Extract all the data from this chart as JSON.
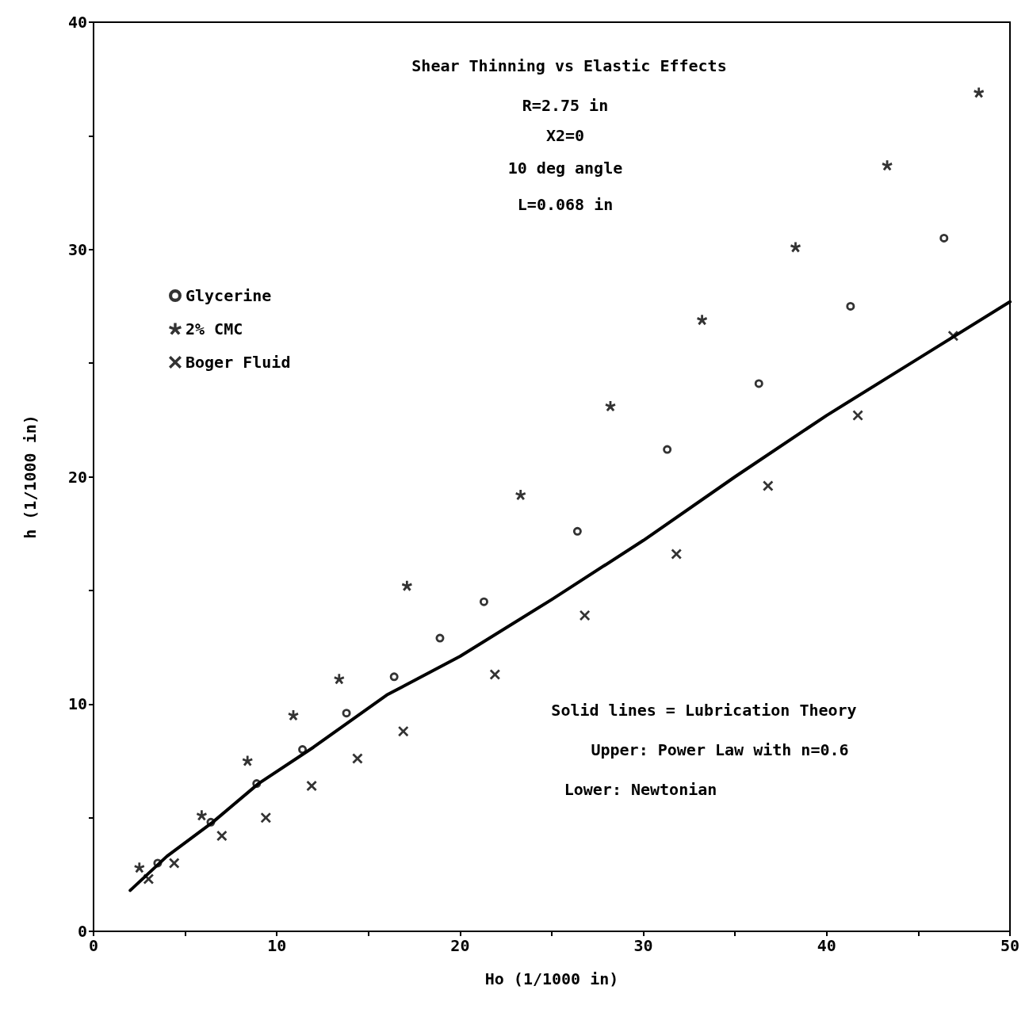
{
  "chart_data": {
    "type": "scatter",
    "title": "Shear Thinning vs Elastic Effects",
    "xlabel": "Ho (1/1000 in)",
    "ylabel": "h (1/1000 in)",
    "xlim": [
      0,
      50
    ],
    "xticks": [
      0,
      {
        "value": 5,
        "label": null
      },
      10,
      {
        "value": 15,
        "label": null
      },
      20,
      {
        "value": 25,
        "label": null
      },
      30,
      {
        "value": 35,
        "label": null
      },
      40,
      {
        "value": 45,
        "label": null
      },
      50
    ],
    "ylim": [
      0,
      40
    ],
    "yticks": [
      0,
      {
        "value": 5,
        "label": null
      },
      10,
      {
        "value": 15,
        "label": null
      },
      20,
      {
        "value": 25,
        "label": null
      },
      30,
      {
        "value": 35,
        "label": null
      },
      40
    ],
    "grid": false,
    "legend": "top left",
    "annotations": [
      "R=2.75 in",
      "X2=0",
      "10 deg angle",
      "L=0.068 in",
      "Solid lines = Lubrication Theory",
      "Upper: Power Law with n=0.6",
      "Lower: Newtonian"
    ],
    "series": [
      {
        "name": "Glycerine",
        "color": "#000000",
        "marker": "circle",
        "x": [
          3.5,
          6.4,
          8.9,
          11.4,
          13.8,
          16.4,
          18.9,
          21.3,
          26.4,
          31.3,
          36.3,
          41.3,
          46.4
        ],
        "values": [
          3.0,
          4.8,
          6.5,
          8.0,
          9.6,
          11.2,
          12.9,
          14.5,
          17.6,
          21.2,
          24.1,
          27.5,
          30.5
        ]
      },
      {
        "name": "2% CMC",
        "color": "#000000",
        "marker": "star",
        "x": [
          2.5,
          5.9,
          8.4,
          10.9,
          13.4,
          17.1,
          23.3,
          28.2,
          33.2,
          38.3,
          43.3,
          48.3
        ],
        "values": [
          2.8,
          5.1,
          7.5,
          9.5,
          11.1,
          15.2,
          19.2,
          23.1,
          26.9,
          30.1,
          33.7,
          36.9
        ]
      },
      {
        "name": "Boger Fluid",
        "color": "#000000",
        "marker": "cross",
        "x": [
          3.0,
          4.4,
          7.0,
          9.4,
          11.9,
          14.4,
          16.9,
          21.9,
          26.8,
          31.8,
          36.8,
          41.7,
          46.9
        ],
        "values": [
          2.3,
          3.0,
          4.2,
          5.0,
          6.4,
          7.6,
          8.8,
          11.3,
          13.9,
          16.6,
          19.6,
          22.7,
          26.2
        ]
      },
      {
        "type": "line",
        "color": "#000000",
        "marker": "none",
        "line_style": "solid",
        "x": [
          2,
          4,
          6.5,
          9,
          12,
          16,
          20,
          25,
          30,
          35,
          40,
          45,
          50
        ],
        "values": [
          1.8,
          3.3,
          4.8,
          6.5,
          8.1,
          10.4,
          12.1,
          14.6,
          17.2,
          20.0,
          22.7,
          25.2,
          27.7
        ]
      }
    ]
  }
}
